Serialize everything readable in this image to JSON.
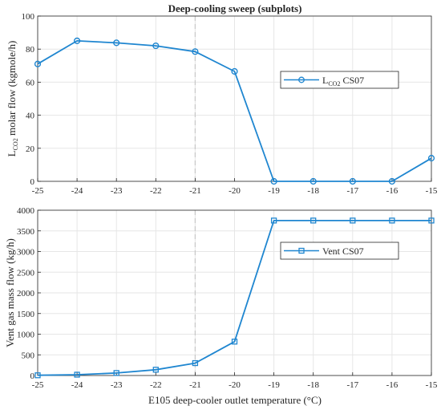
{
  "title": "Deep-cooling sweep (subplots)",
  "colors": {
    "series": "#1f86d0",
    "grid": "#e6e6e6",
    "axis": "#262626",
    "vline": "#c8c8c8"
  },
  "chart_data": [
    {
      "type": "line",
      "marker": "circle",
      "x": [
        -25,
        -24,
        -23,
        -22,
        -21,
        -20,
        -19,
        -18,
        -17,
        -16,
        -15
      ],
      "series": [
        {
          "name": "L_CO2 CS07",
          "values": [
            71,
            85,
            83.8,
            82,
            78.5,
            66.5,
            0,
            0,
            0,
            0,
            14
          ]
        }
      ],
      "xlim": [
        -25,
        -15
      ],
      "ylim": [
        0,
        100
      ],
      "xticks": [
        "-25",
        "-24",
        "-23",
        "-22",
        "-21",
        "-20",
        "-19",
        "-18",
        "-17",
        "-16",
        "-15"
      ],
      "yticks": [
        "0",
        "20",
        "40",
        "60",
        "80",
        "100"
      ],
      "ylabel": {
        "prefix": "L",
        "sub": "CO2",
        "suffix": " molar flow (kgmole/h)"
      },
      "legend": {
        "main": "L",
        "sub": "CO2",
        "suffix": " CS07",
        "position": "right"
      },
      "vline": -21,
      "grid": true
    },
    {
      "type": "line",
      "marker": "square",
      "x": [
        -25,
        -24,
        -23,
        -22,
        -21,
        -20,
        -19,
        -18,
        -17,
        -16,
        -15
      ],
      "series": [
        {
          "name": "Vent CS07",
          "values": [
            5,
            20,
            60,
            140,
            300,
            820,
            3750,
            3750,
            3750,
            3750,
            3750
          ]
        }
      ],
      "xlim": [
        -25,
        -15
      ],
      "ylim": [
        0,
        4000
      ],
      "xticks": [
        "-25",
        "-24",
        "-23",
        "-22",
        "-21",
        "-20",
        "-19",
        "-18",
        "-17",
        "-16",
        "-15"
      ],
      "yticks": [
        "0",
        "500",
        "1000",
        "1500",
        "2000",
        "2500",
        "3000",
        "3500",
        "4000"
      ],
      "ylabel": "Vent gas mass flow (kg/h)",
      "xlabel": "E105 deep-cooler outlet temperature (°C)",
      "legend": {
        "main": "Vent CS07",
        "position": "right"
      },
      "vline": -21,
      "grid": true
    }
  ]
}
